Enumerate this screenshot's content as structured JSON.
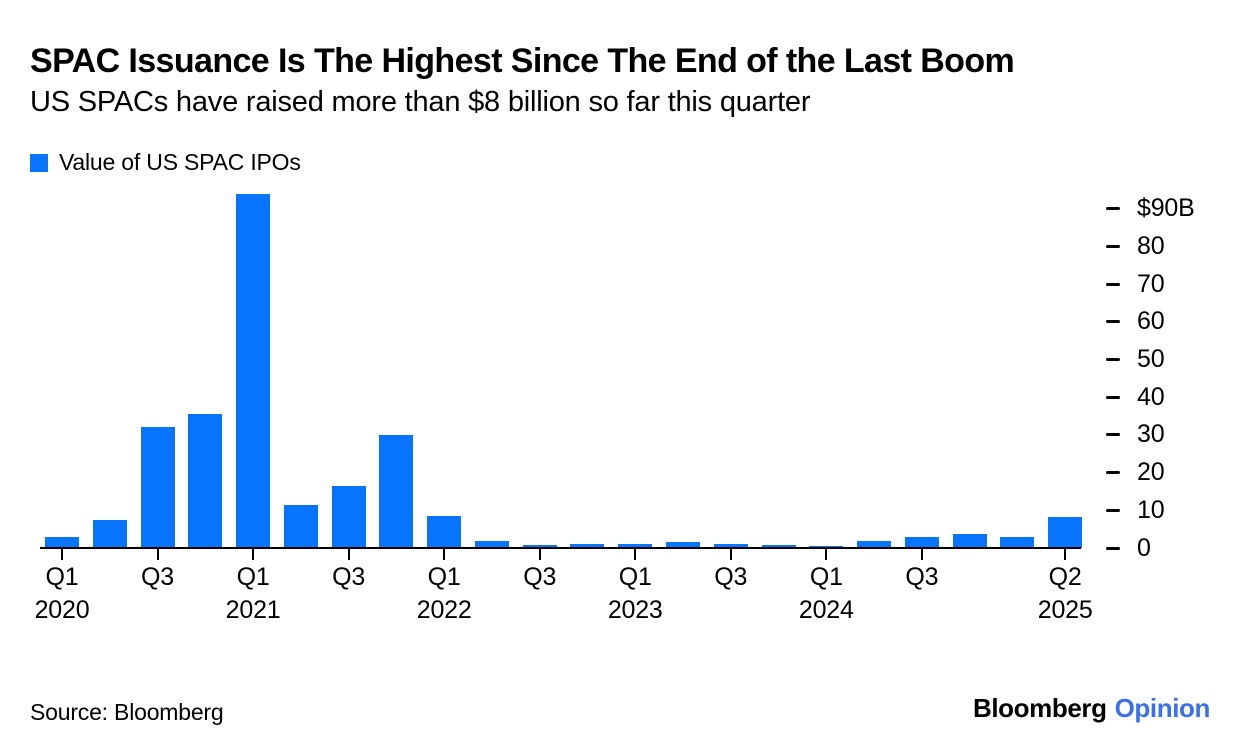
{
  "header": {
    "title": "SPAC Issuance Is The Highest Since The End of the Last Boom",
    "subtitle": "US SPACs have raised more than $8 billion so far this quarter"
  },
  "legend": {
    "label": "Value of US SPAC IPOs"
  },
  "colors": {
    "bar": "#0873fb",
    "axis": "#000000",
    "logo_opinion_blue": "#3a6ff2",
    "text": "#000000"
  },
  "chart_data": {
    "type": "bar",
    "title": "SPAC Issuance Is The Highest Since The End of the Last Boom",
    "subtitle": "US SPACs have raised more than $8 billion so far this quarter",
    "unit": "billions USD",
    "grid": false,
    "legend_position": "top-left",
    "y_axis_side": "right",
    "ylim": [
      0,
      94.5
    ],
    "categories": [
      "Q1 2020",
      "Q2 2020",
      "Q3 2020",
      "Q4 2020",
      "Q1 2021",
      "Q2 2021",
      "Q3 2021",
      "Q4 2021",
      "Q1 2022",
      "Q2 2022",
      "Q3 2022",
      "Q4 2022",
      "Q1 2023",
      "Q2 2023",
      "Q3 2023",
      "Q4 2023",
      "Q1 2024",
      "Q2 2024",
      "Q3 2024",
      "Q4 2024",
      "Q1 2025",
      "Q2 2025"
    ],
    "series": [
      {
        "name": "Value of US SPAC IPOs",
        "values": [
          3,
          7.5,
          32,
          35.5,
          94,
          11.5,
          16.5,
          30,
          8.5,
          1.8,
          0.9,
          1.1,
          1.1,
          1.5,
          1.1,
          0.7,
          0.4,
          1.8,
          2.8,
          3.6,
          2.8,
          8.3
        ]
      }
    ],
    "yticks": {
      "values": [
        90,
        80,
        70,
        60,
        50,
        40,
        30,
        20,
        10,
        0
      ],
      "labels": [
        "$90B",
        "80",
        "70",
        "60",
        "50",
        "40",
        "30",
        "20",
        "10",
        "0"
      ]
    },
    "xticks": [
      {
        "index": 0,
        "line1": "Q1",
        "line2": "2020"
      },
      {
        "index": 2,
        "line1": "Q3",
        "line2": ""
      },
      {
        "index": 4,
        "line1": "Q1",
        "line2": "2021"
      },
      {
        "index": 6,
        "line1": "Q3",
        "line2": ""
      },
      {
        "index": 8,
        "line1": "Q1",
        "line2": "2022"
      },
      {
        "index": 10,
        "line1": "Q3",
        "line2": ""
      },
      {
        "index": 12,
        "line1": "Q1",
        "line2": "2023"
      },
      {
        "index": 14,
        "line1": "Q3",
        "line2": ""
      },
      {
        "index": 16,
        "line1": "Q1",
        "line2": "2024"
      },
      {
        "index": 18,
        "line1": "Q3",
        "line2": ""
      },
      {
        "index": 21,
        "line1": "Q2",
        "line2": "2025"
      }
    ]
  },
  "footer": {
    "source": "Source: Bloomberg",
    "logo_bloomberg": "Bloomberg",
    "logo_opinion": "Opinion"
  }
}
